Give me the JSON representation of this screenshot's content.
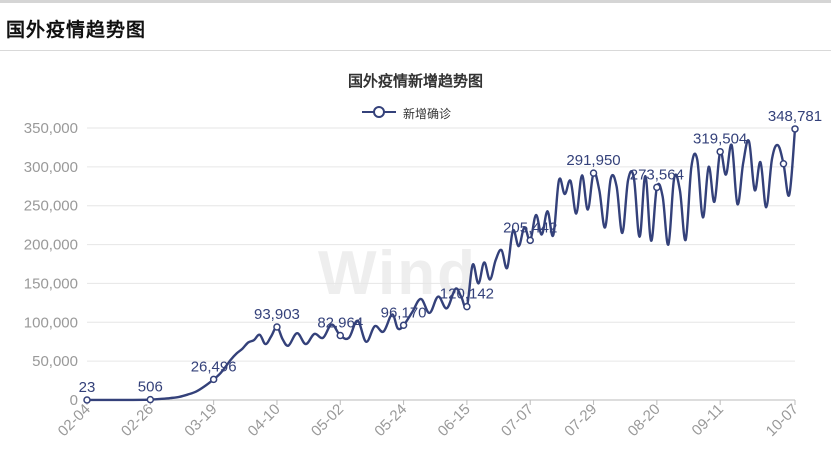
{
  "header": {
    "title": "国外疫情趋势图"
  },
  "colors": {
    "series": "#34417a",
    "axis": "#999999",
    "grid": "#e6e6e6",
    "watermark": "#eeeeee"
  },
  "watermark_text": "Wind",
  "chart_data": {
    "type": "line",
    "title": "国外疫情新增趋势图",
    "legend": {
      "position": "top-center",
      "entries": [
        "新增确诊"
      ]
    },
    "xlabel": "",
    "ylabel": "",
    "x_range": [
      "02-04",
      "10-07"
    ],
    "ylim": [
      0,
      350000
    ],
    "y_ticks": [
      0,
      50000,
      100000,
      150000,
      200000,
      250000,
      300000,
      350000
    ],
    "y_tick_labels": [
      "0",
      "50,000",
      "100,000",
      "150,000",
      "200,000",
      "250,000",
      "300,000",
      "350,000"
    ],
    "x_tick_labels": [
      "02-04",
      "02-26",
      "03-19",
      "04-10",
      "05-02",
      "05-24",
      "06-15",
      "07-07",
      "07-29",
      "08-20",
      "09-11",
      "10-07"
    ],
    "grid": true,
    "series": [
      {
        "name": "新增确诊",
        "color": "#34417a",
        "points": [
          [
            "02-04",
            23
          ],
          [
            "02-09",
            40
          ],
          [
            "02-14",
            60
          ],
          [
            "02-19",
            100
          ],
          [
            "02-24",
            300
          ],
          [
            "02-26",
            506
          ],
          [
            "03-01",
            1500
          ],
          [
            "03-04",
            2500
          ],
          [
            "03-07",
            4000
          ],
          [
            "03-10",
            7000
          ],
          [
            "03-13",
            11000
          ],
          [
            "03-16",
            18000
          ],
          [
            "03-19",
            26496
          ],
          [
            "03-21",
            33000
          ],
          [
            "03-23",
            42000
          ],
          [
            "03-25",
            52000
          ],
          [
            "03-27",
            60000
          ],
          [
            "03-29",
            66000
          ],
          [
            "03-31",
            74000
          ],
          [
            "04-02",
            77000
          ],
          [
            "04-04",
            84000
          ],
          [
            "04-06",
            72000
          ],
          [
            "04-08",
            82000
          ],
          [
            "04-10",
            93903
          ],
          [
            "04-12",
            78000
          ],
          [
            "04-14",
            70000
          ],
          [
            "04-17",
            86000
          ],
          [
            "04-20",
            72000
          ],
          [
            "04-23",
            85000
          ],
          [
            "04-26",
            80000
          ],
          [
            "04-29",
            97000
          ],
          [
            "05-02",
            82964
          ],
          [
            "05-05",
            80000
          ],
          [
            "05-08",
            102000
          ],
          [
            "05-11",
            75000
          ],
          [
            "05-14",
            95000
          ],
          [
            "05-17",
            88000
          ],
          [
            "05-20",
            110000
          ],
          [
            "05-22",
            92000
          ],
          [
            "05-24",
            96170
          ],
          [
            "05-27",
            113000
          ],
          [
            "05-30",
            130000
          ],
          [
            "06-02",
            112000
          ],
          [
            "06-05",
            133000
          ],
          [
            "06-08",
            118000
          ],
          [
            "06-11",
            143000
          ],
          [
            "06-13",
            133000
          ],
          [
            "06-15",
            120142
          ],
          [
            "06-17",
            174000
          ],
          [
            "06-19",
            150000
          ],
          [
            "06-21",
            177000
          ],
          [
            "06-23",
            155000
          ],
          [
            "06-25",
            180000
          ],
          [
            "06-27",
            193000
          ],
          [
            "06-29",
            170000
          ],
          [
            "07-01",
            218000
          ],
          [
            "07-03",
            198000
          ],
          [
            "07-05",
            222000
          ],
          [
            "07-07",
            205442
          ],
          [
            "07-09",
            238000
          ],
          [
            "07-11",
            213000
          ],
          [
            "07-13",
            243000
          ],
          [
            "07-15",
            212000
          ],
          [
            "07-17",
            283000
          ],
          [
            "07-19",
            265000
          ],
          [
            "07-21",
            282000
          ],
          [
            "07-23",
            240000
          ],
          [
            "07-25",
            289000
          ],
          [
            "07-27",
            245000
          ],
          [
            "07-29",
            291950
          ],
          [
            "07-31",
            270000
          ],
          [
            "08-02",
            222000
          ],
          [
            "08-04",
            285000
          ],
          [
            "08-06",
            275000
          ],
          [
            "08-08",
            215000
          ],
          [
            "08-10",
            283000
          ],
          [
            "08-12",
            286000
          ],
          [
            "08-14",
            210000
          ],
          [
            "08-16",
            288000
          ],
          [
            "08-18",
            205000
          ],
          [
            "08-20",
            273564
          ],
          [
            "08-22",
            262000
          ],
          [
            "08-24",
            200000
          ],
          [
            "08-26",
            285000
          ],
          [
            "08-28",
            270000
          ],
          [
            "08-30",
            206000
          ],
          [
            "09-01",
            300000
          ],
          [
            "09-03",
            310000
          ],
          [
            "09-05",
            235000
          ],
          [
            "09-07",
            300000
          ],
          [
            "09-09",
            255000
          ],
          [
            "09-11",
            319504
          ],
          [
            "09-13",
            290000
          ],
          [
            "09-15",
            328000
          ],
          [
            "09-17",
            252000
          ],
          [
            "09-19",
            305000
          ],
          [
            "09-21",
            333000
          ],
          [
            "09-23",
            270000
          ],
          [
            "09-25",
            306000
          ],
          [
            "09-27",
            248000
          ],
          [
            "09-29",
            310000
          ],
          [
            "10-01",
            328000
          ],
          [
            "10-03",
            304000
          ],
          [
            "10-05",
            264000
          ],
          [
            "10-07",
            348781
          ]
        ]
      }
    ],
    "labeled_points": [
      {
        "x": "02-04",
        "value": 23,
        "label": "23"
      },
      {
        "x": "02-26",
        "value": 506,
        "label": "506"
      },
      {
        "x": "03-19",
        "value": 26496,
        "label": "26,496"
      },
      {
        "x": "04-10",
        "value": 93903,
        "label": "93,903"
      },
      {
        "x": "05-02",
        "value": 82964,
        "label": "82,964"
      },
      {
        "x": "05-24",
        "value": 96170,
        "label": "96,170"
      },
      {
        "x": "06-15",
        "value": 120142,
        "label": "120,142"
      },
      {
        "x": "07-07",
        "value": 205442,
        "label": "205,442"
      },
      {
        "x": "07-29",
        "value": 291950,
        "label": "291,950"
      },
      {
        "x": "08-20",
        "value": 273564,
        "label": "273,564"
      },
      {
        "x": "09-11",
        "value": 319504,
        "label": "319,504"
      },
      {
        "x": "10-07",
        "value": 348781,
        "label": "348,781"
      }
    ],
    "unlabeled_markers": [
      {
        "x": "10-03",
        "value": 304000
      }
    ]
  }
}
